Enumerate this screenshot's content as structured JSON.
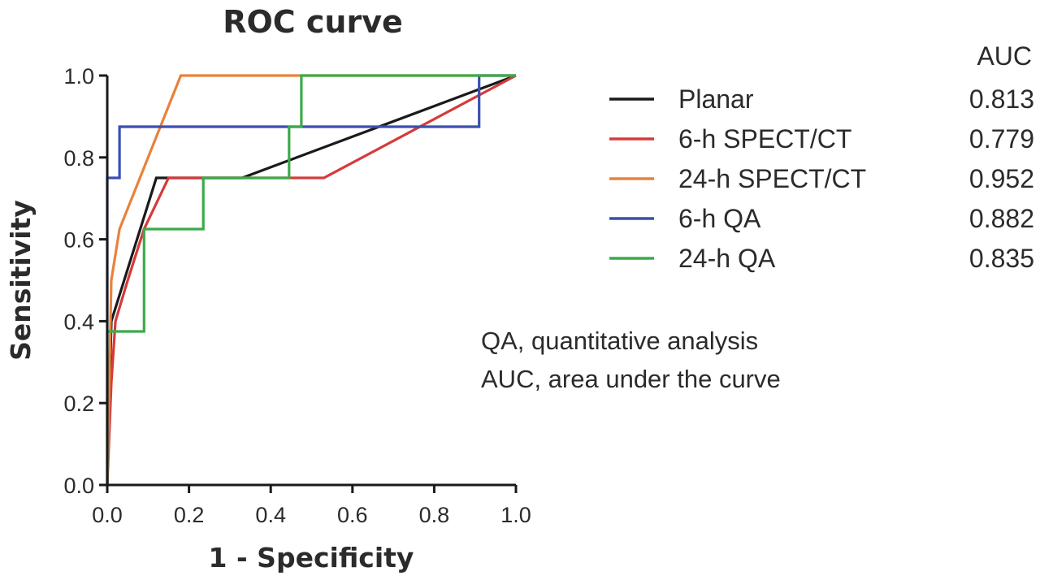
{
  "chart_data": {
    "type": "line",
    "title": "ROC curve",
    "xlabel": "1 - Specificity",
    "ylabel": "Sensitivity",
    "xlim": [
      0,
      1
    ],
    "ylim": [
      0,
      1
    ],
    "xticks": [
      "0.0",
      "0.2",
      "0.4",
      "0.6",
      "0.8",
      "1.0"
    ],
    "yticks": [
      "0.0",
      "0.2",
      "0.4",
      "0.6",
      "0.8",
      "1.0"
    ],
    "grid": false,
    "legend_position": "right",
    "auc_header": "AUC",
    "series": [
      {
        "name": "Planar",
        "auc": "0.813",
        "color": "#1a1a1a",
        "x": [
          0,
          0.01,
          0.12,
          0.33,
          1.0
        ],
        "y": [
          0,
          0.4,
          0.75,
          0.75,
          1.0
        ]
      },
      {
        "name": "6-h SPECT/CT",
        "auc": "0.779",
        "color": "#d63a3a",
        "x": [
          0,
          0.01,
          0.02,
          0.05,
          0.09,
          0.15,
          0.53,
          1.0
        ],
        "y": [
          0,
          0.25,
          0.4,
          0.5,
          0.625,
          0.75,
          0.75,
          1.0
        ]
      },
      {
        "name": "24-h SPECT/CT",
        "auc": "0.952",
        "color": "#e8823a",
        "x": [
          0,
          0.01,
          0.03,
          0.18,
          1.0
        ],
        "y": [
          0,
          0.5,
          0.625,
          1.0,
          1.0
        ]
      },
      {
        "name": "6-h QA",
        "auc": "0.882",
        "color": "#3a4fb0",
        "x": [
          0,
          0,
          0.03,
          0.03,
          0.91,
          0.91,
          1.0
        ],
        "y": [
          0,
          0.75,
          0.75,
          0.875,
          0.875,
          1.0,
          1.0
        ]
      },
      {
        "name": "24-h QA",
        "auc": "0.835",
        "color": "#3aab4a",
        "x": [
          0,
          0,
          0.09,
          0.09,
          0.235,
          0.235,
          0.445,
          0.445,
          0.475,
          0.475,
          1.0
        ],
        "y": [
          0,
          0.375,
          0.375,
          0.625,
          0.625,
          0.75,
          0.75,
          0.875,
          0.875,
          1.0,
          1.0
        ]
      }
    ],
    "annotations": [
      "QA, quantitative analysis",
      "AUC, area under the curve"
    ]
  }
}
